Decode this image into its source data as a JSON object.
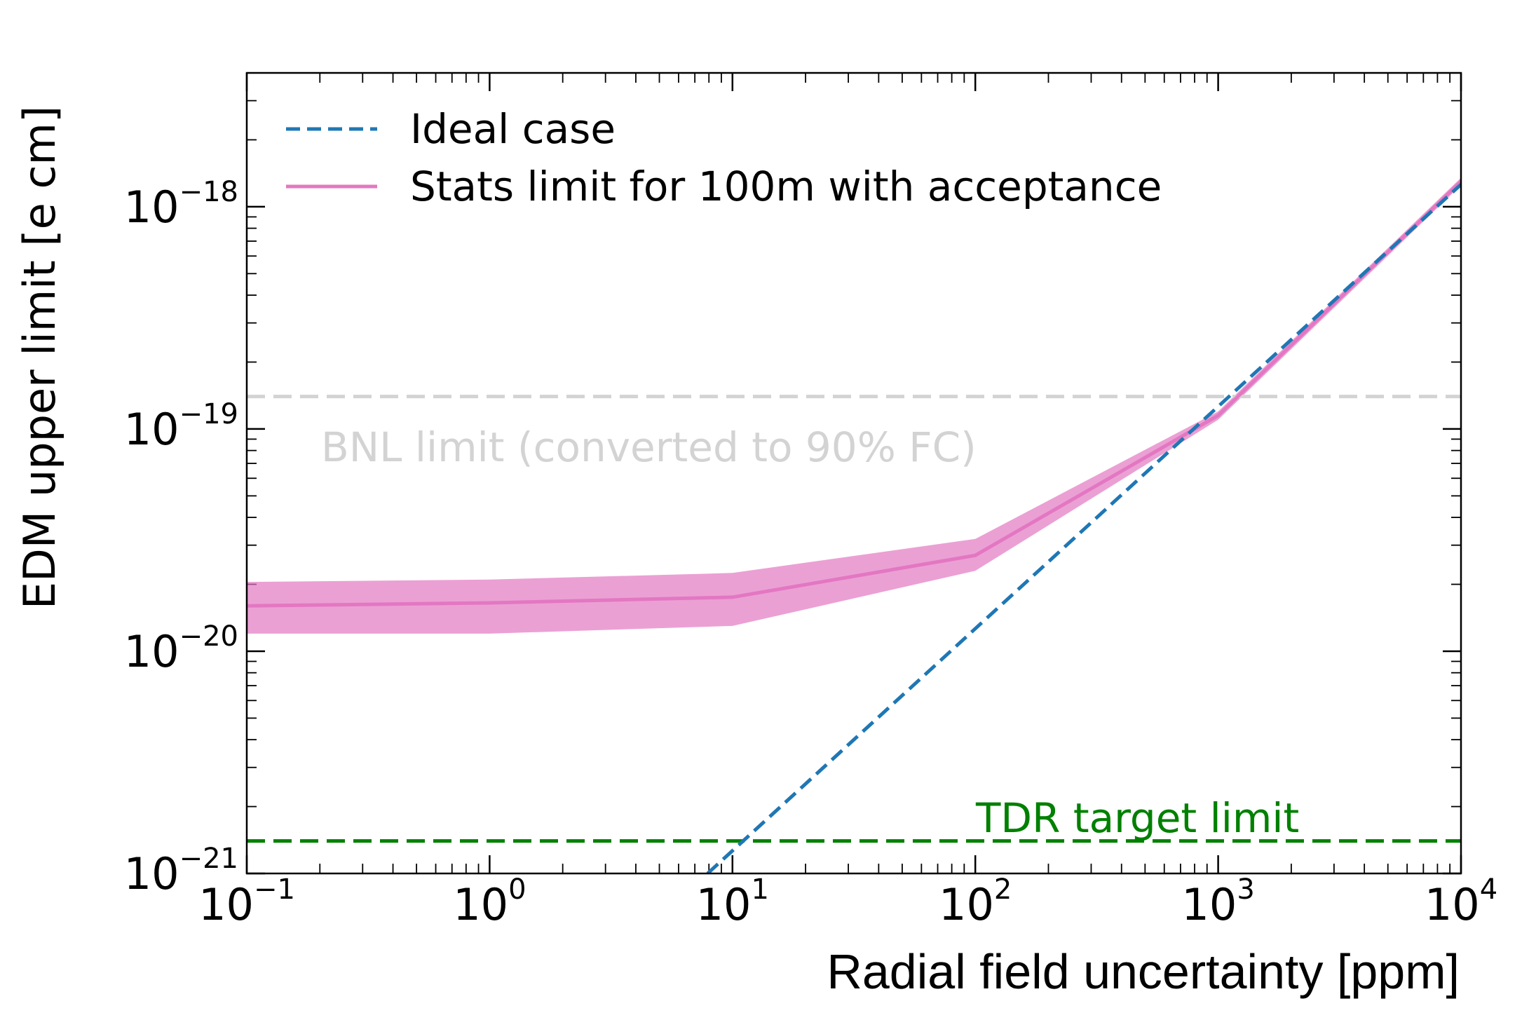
{
  "chart_data": {
    "type": "line",
    "xlabel": "Radial field uncertainty [ppm]",
    "ylabel": "EDM upper limit [e cm]",
    "xscale": "log",
    "yscale": "log",
    "xlim": [
      0.1,
      10000
    ],
    "ylim": [
      1e-21,
      4e-18
    ],
    "x_ticks": [
      {
        "value": 0.1,
        "base": "10",
        "exp": "−1"
      },
      {
        "value": 1,
        "base": "10",
        "exp": "0"
      },
      {
        "value": 10,
        "base": "10",
        "exp": "1"
      },
      {
        "value": 100,
        "base": "10",
        "exp": "2"
      },
      {
        "value": 1000,
        "base": "10",
        "exp": "3"
      },
      {
        "value": 10000,
        "base": "10",
        "exp": "4"
      }
    ],
    "y_ticks": [
      {
        "value": 1e-21,
        "base": "10",
        "exp": "−21"
      },
      {
        "value": 1e-20,
        "base": "10",
        "exp": "−20"
      },
      {
        "value": 1e-19,
        "base": "10",
        "exp": "−19"
      },
      {
        "value": 1e-18,
        "base": "10",
        "exp": "−18"
      }
    ],
    "legend_position": "top-left",
    "grid": false,
    "series": [
      {
        "name": "Ideal case",
        "style": "dashed",
        "color": "#1f77b4",
        "x": [
          7.9,
          10000
        ],
        "y": [
          1e-21,
          1.26e-18
        ]
      },
      {
        "name": "Stats limit for 100m with acceptance",
        "style": "solid",
        "color": "#e377c2",
        "x": [
          0.1,
          1,
          10,
          100,
          1000,
          10000
        ],
        "y": [
          1.6e-20,
          1.65e-20,
          1.75e-20,
          2.7e-20,
          1.15e-19,
          1.3e-18
        ],
        "band_upper": [
          2.05e-20,
          2.1e-20,
          2.25e-20,
          3.2e-20,
          1.2e-19,
          1.35e-18
        ],
        "band_lower": [
          1.2e-20,
          1.2e-20,
          1.3e-20,
          2.3e-20,
          1.1e-19,
          1.25e-18
        ]
      }
    ],
    "reference_lines": [
      {
        "label": "BNL limit (converted to 90% FC)",
        "y": 1.4e-19,
        "color": "#d3d3d3",
        "label_color": "#d3d3d3"
      },
      {
        "label": "TDR target limit",
        "y": 1.4e-21,
        "color": "#008000",
        "label_color": "#008000"
      }
    ]
  }
}
